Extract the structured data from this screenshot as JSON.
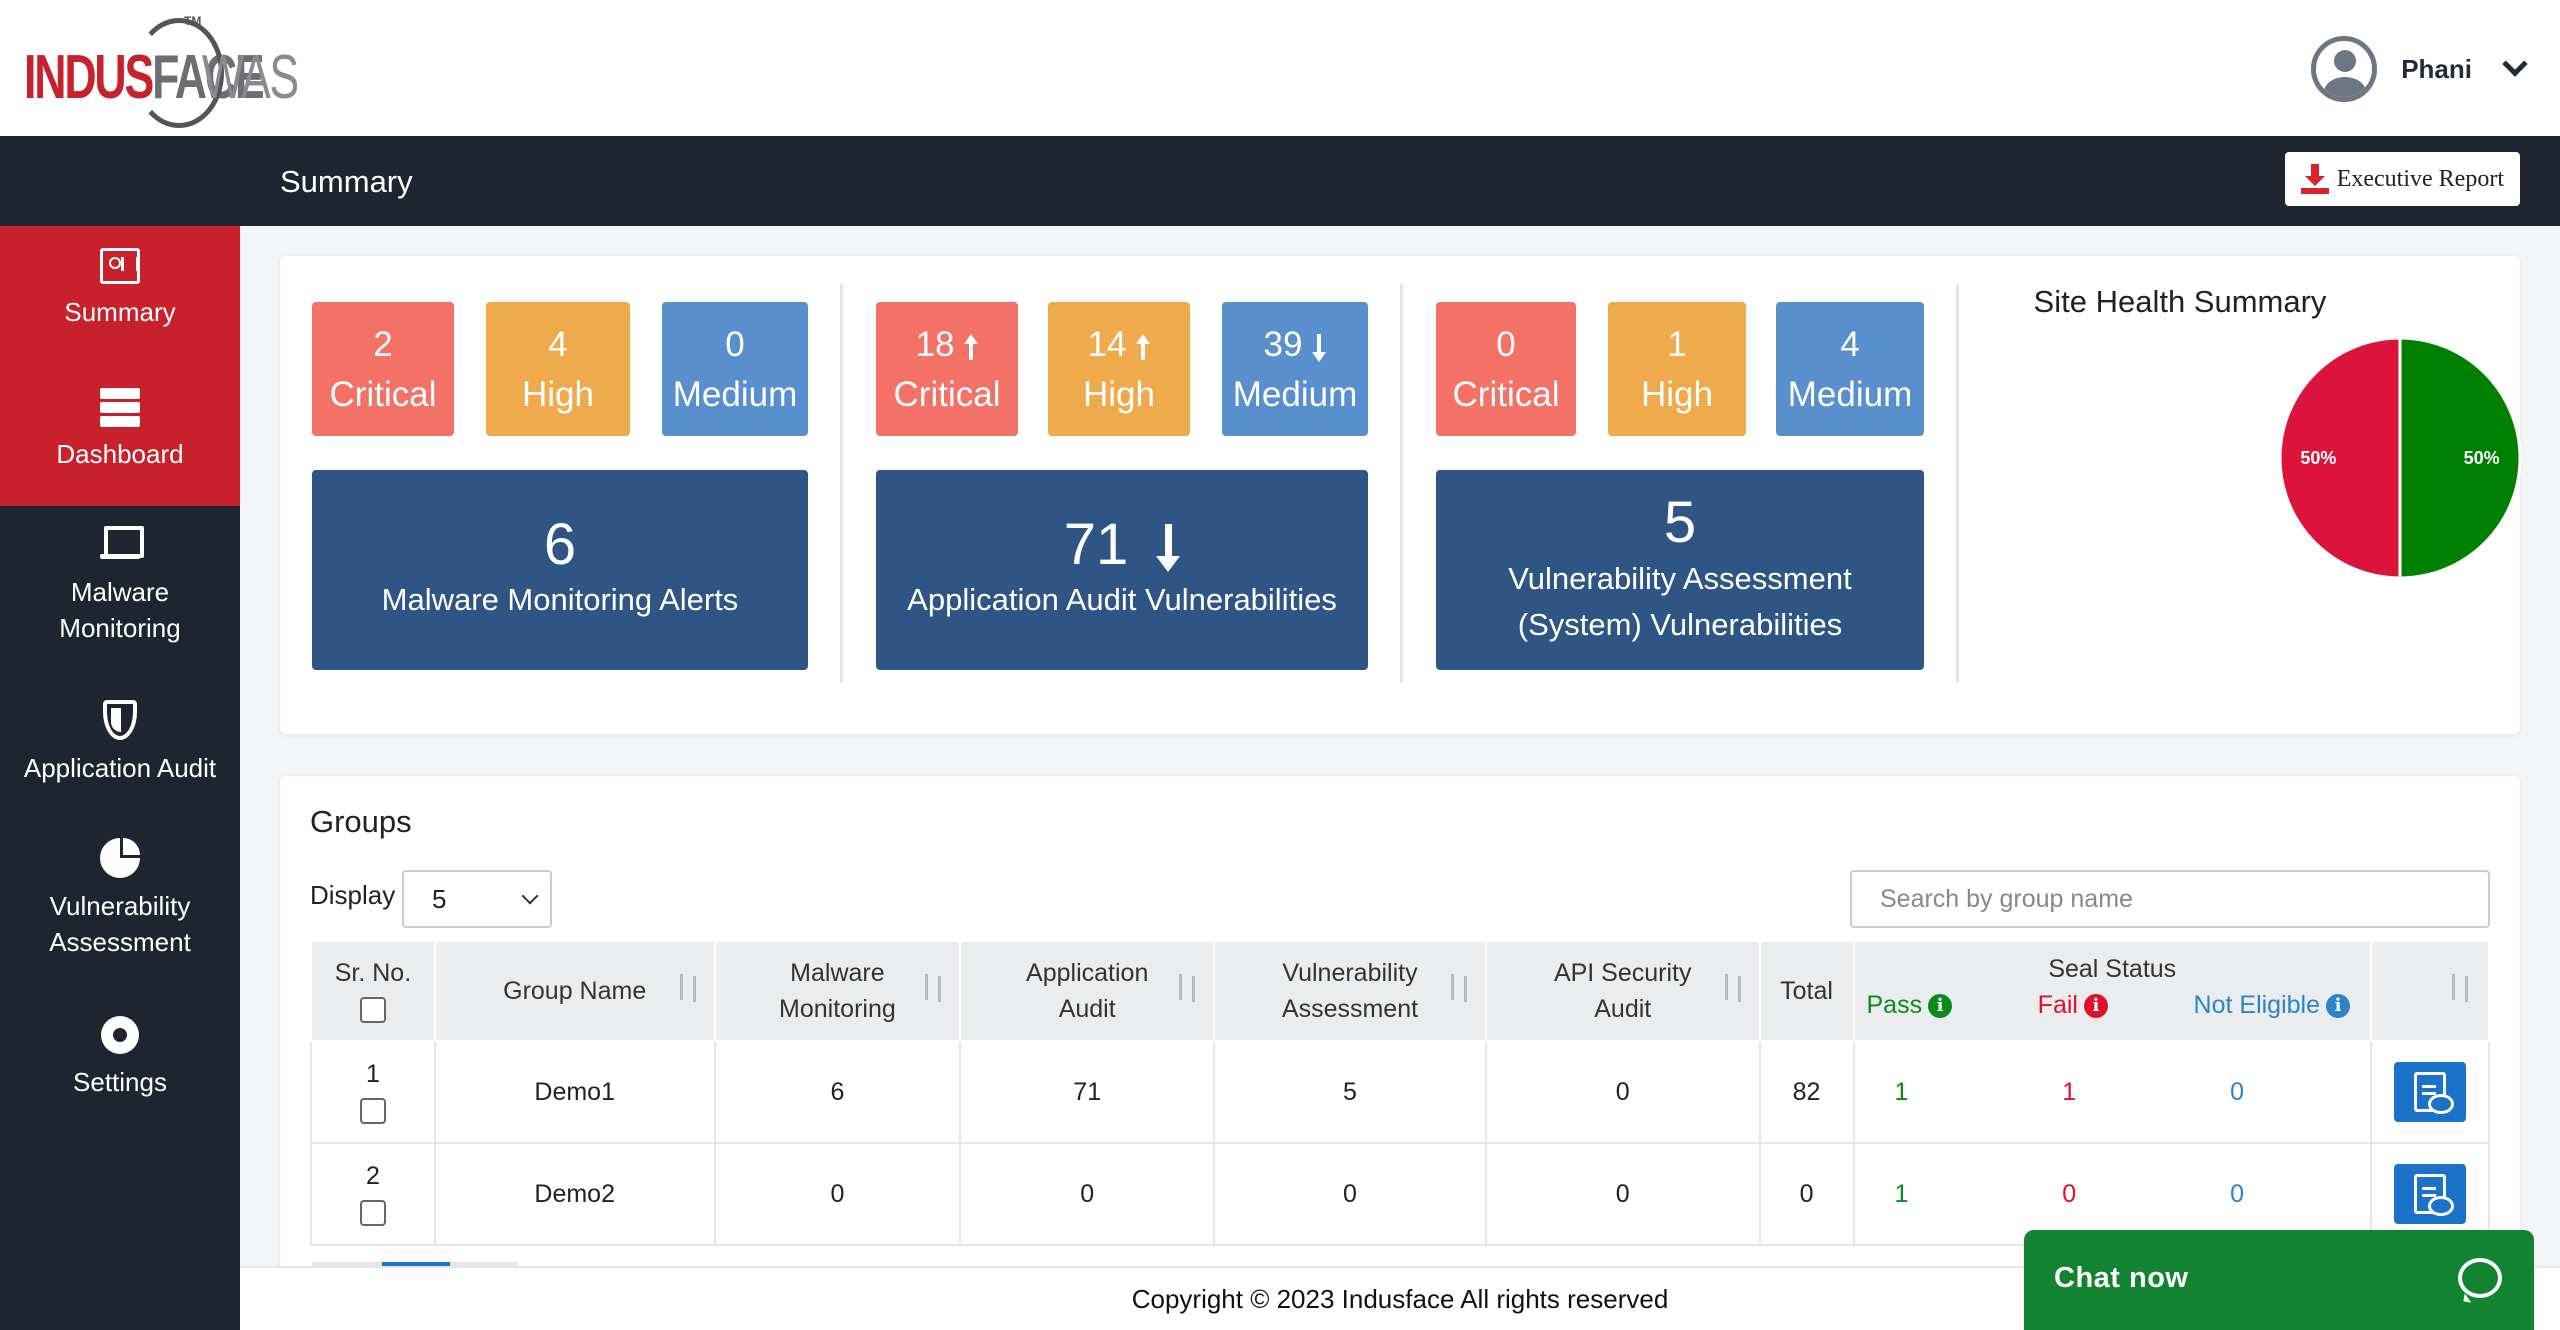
{
  "header": {
    "logo_text_red": "INDUS",
    "logo_text_gray": "FACE",
    "logo_suffix": "WAS",
    "logo_tm": "TM",
    "user_name": "Phani"
  },
  "titlebar": {
    "page_title": "Summary",
    "executive_report_label": "Executive Report"
  },
  "sidebar": {
    "items": [
      {
        "label": "Summary",
        "icon": "summary-icon",
        "active": true
      },
      {
        "label": "Dashboard",
        "icon": "dashboard-icon",
        "active": true
      },
      {
        "label_lines": [
          "Malware",
          "Monitoring"
        ],
        "icon": "laptop-icon"
      },
      {
        "label": "Application Audit",
        "icon": "shield-icon"
      },
      {
        "label_lines": [
          "Vulnerability",
          "Assessment"
        ],
        "icon": "pie-icon"
      },
      {
        "label": "Settings",
        "icon": "gear-icon"
      }
    ]
  },
  "summary": {
    "malware": {
      "critical": {
        "value": "2",
        "label": "Critical"
      },
      "high": {
        "value": "4",
        "label": "High"
      },
      "medium": {
        "value": "0",
        "label": "Medium"
      },
      "total": "6",
      "total_label": "Malware Monitoring Alerts"
    },
    "app_audit": {
      "critical": {
        "value": "18",
        "label": "Critical",
        "trend": "up"
      },
      "high": {
        "value": "14",
        "label": "High",
        "trend": "up"
      },
      "medium": {
        "value": "39",
        "label": "Medium",
        "trend": "down"
      },
      "total": "71",
      "total_trend": "down",
      "total_label": "Application Audit Vulnerabilities"
    },
    "vuln_assessment": {
      "critical": {
        "value": "0",
        "label": "Critical"
      },
      "high": {
        "value": "1",
        "label": "High"
      },
      "medium": {
        "value": "4",
        "label": "Medium"
      },
      "total": "5",
      "total_label_line1": "Vulnerability Assessment",
      "total_label_line2": "(System) Vulnerabilities"
    }
  },
  "chart_data": {
    "type": "pie",
    "title": "Site Health Summary",
    "slices": [
      {
        "label": "50%",
        "value": 50,
        "color": "#dc143c"
      },
      {
        "label": "50%",
        "value": 50,
        "color": "#008000"
      }
    ]
  },
  "groups": {
    "title": "Groups",
    "display_label": "Display",
    "display_value": "5",
    "search_placeholder": "Search by group name",
    "columns": {
      "sr_no": "Sr. No.",
      "group_name": "Group Name",
      "malware_1": "Malware",
      "malware_2": "Monitoring",
      "app_1": "Application",
      "app_2": "Audit",
      "vuln_1": "Vulnerability",
      "vuln_2": "Assessment",
      "api_1": "API Security",
      "api_2": "Audit",
      "total": "Total",
      "seal_status": "Seal Status",
      "pass": "Pass",
      "fail": "Fail",
      "not_eligible": "Not Eligible"
    },
    "rows": [
      {
        "sr": "1",
        "name": "Demo1",
        "malware": "6",
        "app": "71",
        "vuln": "5",
        "api": "0",
        "total": "82",
        "pass": "1",
        "fail": "1",
        "ne": "0"
      },
      {
        "sr": "2",
        "name": "Demo2",
        "malware": "0",
        "app": "0",
        "vuln": "0",
        "api": "0",
        "total": "0",
        "pass": "1",
        "fail": "0",
        "ne": "0"
      }
    ]
  },
  "footer": {
    "copyright": "Copyright © 2023 Indusface All rights reserved"
  },
  "chat": {
    "label": "Chat now"
  }
}
